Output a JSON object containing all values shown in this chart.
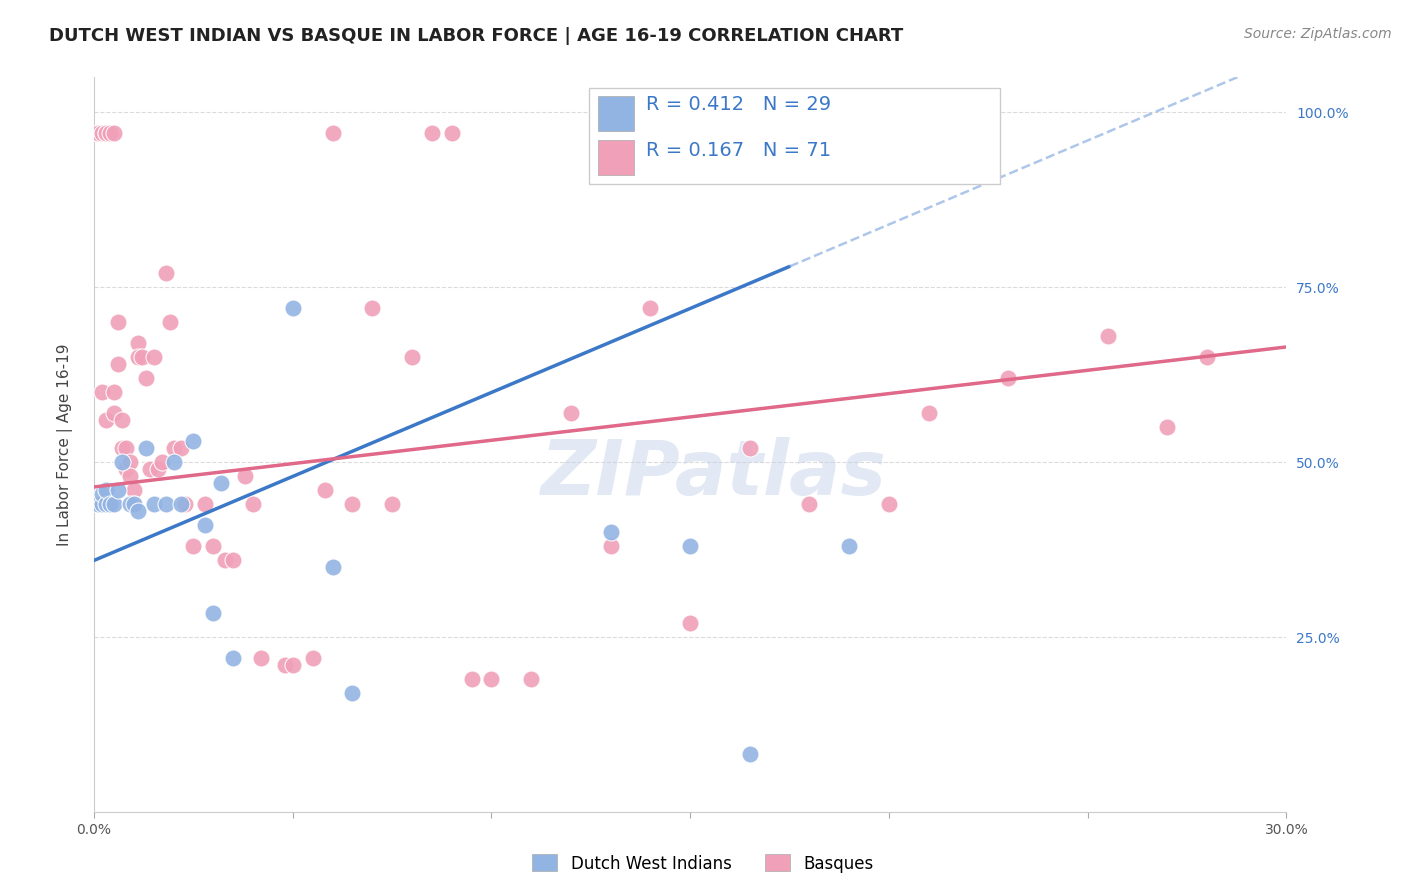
{
  "title": "DUTCH WEST INDIAN VS BASQUE IN LABOR FORCE | AGE 16-19 CORRELATION CHART",
  "source": "Source: ZipAtlas.com",
  "ylabel": "In Labor Force | Age 16-19",
  "watermark": "ZIPatlas",
  "xlim": [
    0.0,
    0.3
  ],
  "ylim": [
    0.0,
    1.05
  ],
  "blue_color": "#92b4e3",
  "pink_color": "#f0a0b8",
  "blue_line_color": "#3c78c8",
  "pink_line_color": "#e06888",
  "r_blue": 0.412,
  "n_blue": 29,
  "r_pink": 0.167,
  "n_pink": 71,
  "legend_blue_label": "Dutch West Indians",
  "legend_pink_label": "Basques",
  "blue_scatter_x": [
    0.001,
    0.002,
    0.002,
    0.003,
    0.003,
    0.004,
    0.005,
    0.006,
    0.007,
    0.009,
    0.01,
    0.011,
    0.013,
    0.015,
    0.018,
    0.02,
    0.022,
    0.025,
    0.028,
    0.03,
    0.032,
    0.035,
    0.05,
    0.06,
    0.065,
    0.13,
    0.15,
    0.165,
    0.19
  ],
  "blue_scatter_y": [
    0.44,
    0.44,
    0.455,
    0.44,
    0.46,
    0.44,
    0.44,
    0.46,
    0.5,
    0.44,
    0.44,
    0.43,
    0.52,
    0.44,
    0.44,
    0.5,
    0.44,
    0.53,
    0.41,
    0.285,
    0.47,
    0.22,
    0.72,
    0.35,
    0.17,
    0.4,
    0.38,
    0.083,
    0.38
  ],
  "pink_scatter_x": [
    0.001,
    0.001,
    0.001,
    0.001,
    0.002,
    0.002,
    0.003,
    0.003,
    0.003,
    0.004,
    0.004,
    0.005,
    0.005,
    0.005,
    0.006,
    0.006,
    0.007,
    0.007,
    0.008,
    0.008,
    0.009,
    0.009,
    0.01,
    0.01,
    0.011,
    0.011,
    0.012,
    0.013,
    0.014,
    0.015,
    0.016,
    0.017,
    0.018,
    0.019,
    0.02,
    0.022,
    0.023,
    0.025,
    0.028,
    0.03,
    0.033,
    0.035,
    0.038,
    0.04,
    0.042,
    0.048,
    0.05,
    0.055,
    0.058,
    0.06,
    0.065,
    0.07,
    0.075,
    0.08,
    0.085,
    0.09,
    0.095,
    0.1,
    0.11,
    0.12,
    0.13,
    0.14,
    0.15,
    0.165,
    0.18,
    0.2,
    0.21,
    0.23,
    0.255,
    0.27,
    0.28
  ],
  "pink_scatter_y": [
    0.97,
    0.97,
    0.97,
    0.44,
    0.97,
    0.6,
    0.97,
    0.97,
    0.56,
    0.97,
    0.44,
    0.97,
    0.6,
    0.57,
    0.7,
    0.64,
    0.56,
    0.52,
    0.52,
    0.49,
    0.5,
    0.48,
    0.46,
    0.44,
    0.67,
    0.65,
    0.65,
    0.62,
    0.49,
    0.65,
    0.49,
    0.5,
    0.77,
    0.7,
    0.52,
    0.52,
    0.44,
    0.38,
    0.44,
    0.38,
    0.36,
    0.36,
    0.48,
    0.44,
    0.22,
    0.21,
    0.21,
    0.22,
    0.46,
    0.97,
    0.44,
    0.72,
    0.44,
    0.65,
    0.97,
    0.97,
    0.19,
    0.19,
    0.19,
    0.57,
    0.38,
    0.72,
    0.27,
    0.52,
    0.44,
    0.44,
    0.57,
    0.62,
    0.68,
    0.55,
    0.65
  ],
  "background_color": "#ffffff",
  "grid_color": "#d8d8d8",
  "title_fontsize": 13,
  "axis_label_fontsize": 11,
  "tick_fontsize": 10,
  "legend_fontsize": 14,
  "watermark_fontsize": 55,
  "watermark_color": "#c0cfe8",
  "watermark_alpha": 0.45,
  "source_fontsize": 10,
  "tick_color_blue": "#3c78c8"
}
